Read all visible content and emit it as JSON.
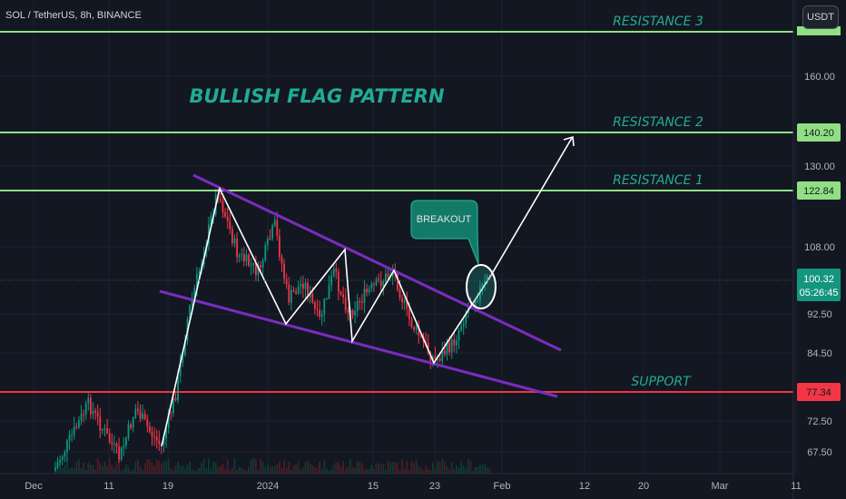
{
  "header": {
    "symbol_label": "SOL / TetherUS, 8h, BINANCE"
  },
  "currency_button": "USDT",
  "chart_data": {
    "type": "candlestick",
    "title": "BULLISH FLAG PATTERN",
    "y_ticks": [
      "160.00",
      "130.00",
      "108.00",
      "92.50",
      "84.50",
      "72.50",
      "67.50"
    ],
    "x_ticks": [
      "Dec",
      "11",
      "19",
      "2024",
      "15",
      "23",
      "Feb",
      "12",
      "20",
      "Mar",
      "11"
    ],
    "levels": [
      {
        "name": "RESISTANCE 3",
        "badge": "",
        "color": "#90e083"
      },
      {
        "name": "RESISTANCE 2",
        "value": 140.2,
        "badge": "140.20",
        "color": "#90e083"
      },
      {
        "name": "RESISTANCE 1",
        "value": 122.84,
        "badge": "122.84",
        "color": "#90e083"
      },
      {
        "name": "SUPPORT",
        "value": 77.34,
        "badge": "77.34",
        "color": "#f23645"
      }
    ],
    "last_price": "100.32",
    "countdown": "05:26:45",
    "annotation": "BREAKOUT",
    "colors": {
      "up": "#089981",
      "down": "#f23645",
      "channel": "#7b2cbf",
      "label": "#22ab94",
      "background": "#131722"
    }
  }
}
